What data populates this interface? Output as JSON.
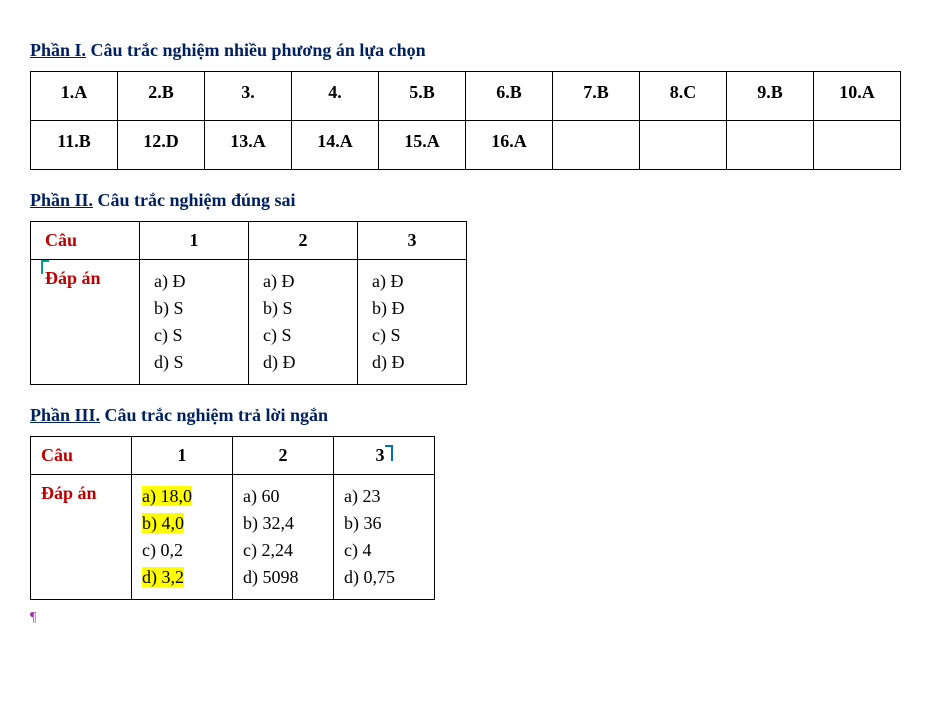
{
  "section1": {
    "part_label": "Phần I.",
    "title": "Câu trắc nghiệm nhiều phương án lựa chọn",
    "rows": [
      [
        "1.A",
        "2.B",
        "3.",
        "4.",
        "5.B",
        "6.B",
        "7.B",
        "8.C",
        "9.B",
        "10.A"
      ],
      [
        "11.B",
        "12.D",
        "13.A",
        "14.A",
        "15.A",
        "16.A",
        "",
        "",
        "",
        ""
      ]
    ]
  },
  "section2": {
    "part_label": "Phần II.",
    "title": "Câu trắc nghiệm đúng sai",
    "row_header_1": "Câu",
    "row_header_2": "Đáp án",
    "col_headers": [
      "1",
      "2",
      "3"
    ],
    "answers": [
      [
        "a) Đ",
        "b) S",
        "c) S",
        "d) S"
      ],
      [
        "a) Đ",
        "b) S",
        "c) S",
        "d) Đ"
      ],
      [
        "a) Đ",
        "b) Đ",
        "c) S",
        "d) Đ"
      ]
    ]
  },
  "section3": {
    "part_label": "Phần III.",
    "title": "Câu trắc nghiệm trả lời ngắn",
    "row_header_1": "Câu",
    "row_header_2": "Đáp án",
    "col_headers": [
      "1",
      "2",
      "3"
    ],
    "answers": [
      [
        {
          "t": "a) 18,0",
          "hl": true
        },
        {
          "t": "b) 4,0",
          "hl": true
        },
        {
          "t": "c) 0,2",
          "hl": false
        },
        {
          "t": "d) 3,2",
          "hl": true
        }
      ],
      [
        {
          "t": "a) 60",
          "hl": false
        },
        {
          "t": "b) 32,4",
          "hl": false
        },
        {
          "t": "c) 2,24",
          "hl": false
        },
        {
          "t": "d) 5098",
          "hl": false
        }
      ],
      [
        {
          "t": "a) 23",
          "hl": false
        },
        {
          "t": "b) 36",
          "hl": false
        },
        {
          "t": "c) 4",
          "hl": false
        },
        {
          "t": "d) 0,75",
          "hl": false
        }
      ]
    ]
  },
  "colors": {
    "heading": "#002060",
    "red_header": "#c00000",
    "highlight": "#ffff00"
  }
}
